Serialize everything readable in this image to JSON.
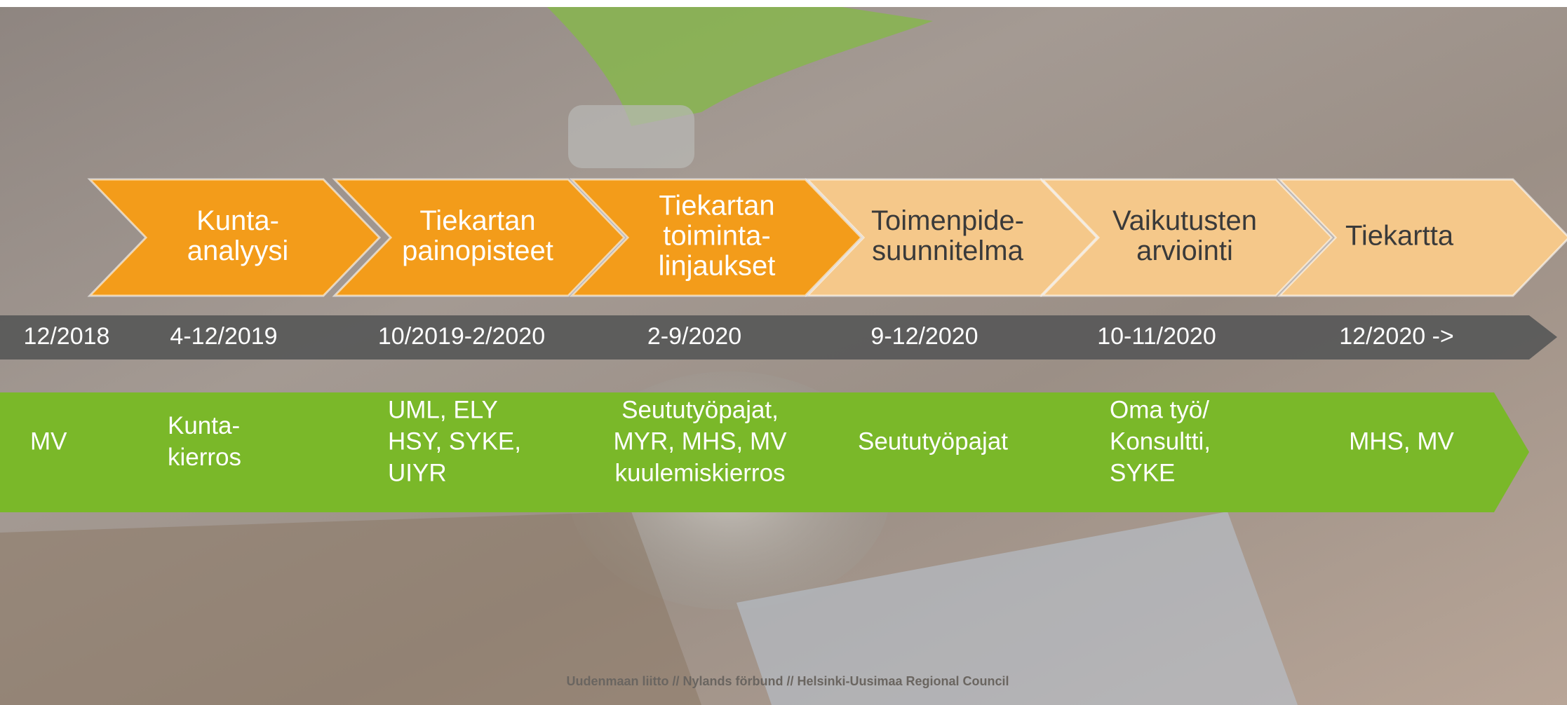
{
  "steps": [
    {
      "lines": [
        "Kunta-",
        "analyysi"
      ]
    },
    {
      "lines": [
        "Tiekartan",
        "painopisteet"
      ]
    },
    {
      "lines": [
        "Tiekartan",
        "toiminta-",
        "linjaukset"
      ]
    },
    {
      "lines": [
        "Toimenpide-",
        "suunnitelma"
      ]
    },
    {
      "lines": [
        "Vaikutusten",
        "arviointi"
      ]
    },
    {
      "lines": [
        "Tiekartta"
      ]
    }
  ],
  "dates": [
    "12/2018",
    "4-12/2019",
    "10/2019-2/2020",
    "2-9/2020",
    "9-12/2020",
    "10-11/2020",
    "12/2020 ->"
  ],
  "actors": [
    {
      "lines": [
        "MV"
      ]
    },
    {
      "lines": [
        "Kunta-",
        "kierros"
      ]
    },
    {
      "lines": [
        "UML, ELY",
        "HSY, SYKE,",
        "UIYR"
      ]
    },
    {
      "lines": [
        "Seututyöpajat,",
        "MYR, MHS, MV",
        "kuulemiskierros"
      ]
    },
    {
      "lines": [
        "Seututyöpajat"
      ]
    },
    {
      "lines": [
        "Oma työ/",
        "Konsultti,",
        "SYKE"
      ]
    },
    {
      "lines": [
        "MHS, MV"
      ]
    }
  ],
  "footer": "Uudenmaan liitto // Nylands förbund // Helsinki-Uusimaa Regional Council"
}
